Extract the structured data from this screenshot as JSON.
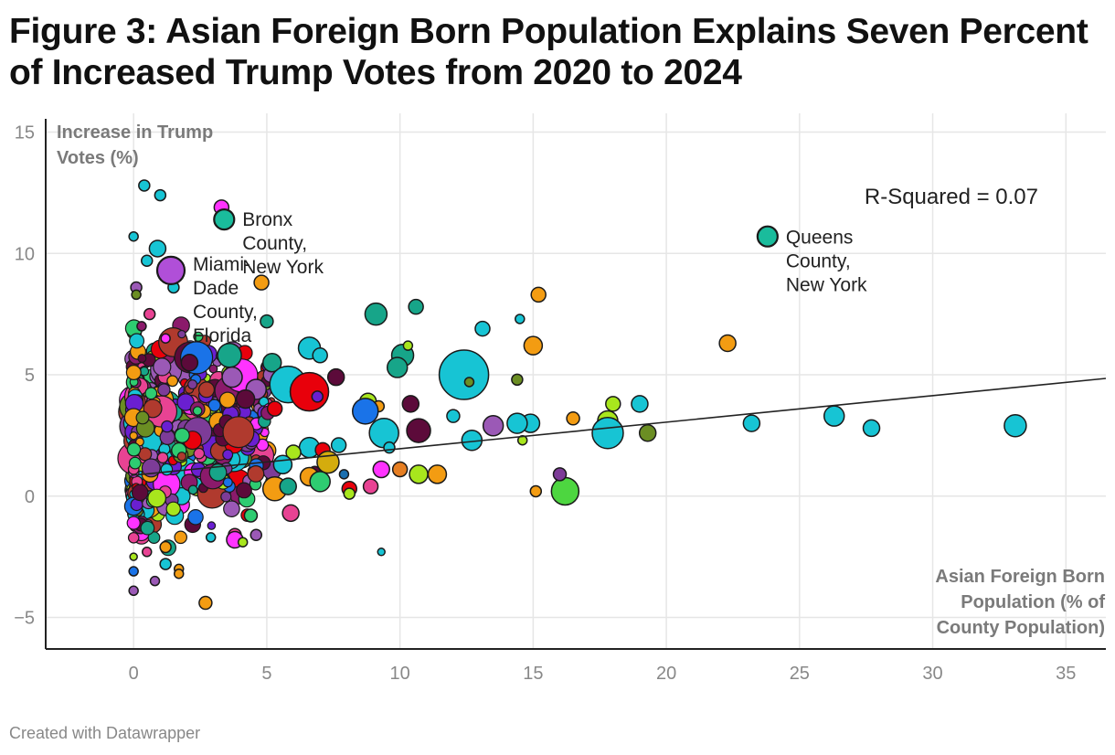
{
  "title": "Figure 3: Asian Foreign Born Population Explains Seven Percent of Increased Trump Votes from 2020 to 2024",
  "footer": "Created with Datawrapper",
  "chart_data": {
    "type": "scatter",
    "ylabel_lines": [
      "Increase in Trump",
      "Votes (%)"
    ],
    "xlabel_lines": [
      "Asian Foreign Born",
      "Population (% of",
      "County Population)"
    ],
    "xlim": [
      -3.3,
      36.5
    ],
    "ylim": [
      -6.3,
      16
    ],
    "x_ticks": [
      0,
      5,
      10,
      15,
      20,
      25,
      30,
      35
    ],
    "y_ticks": [
      15,
      10,
      5,
      0,
      -5
    ],
    "y_tick_labels": [
      "15",
      "10",
      "5",
      "0",
      "−5"
    ],
    "grid": true,
    "annotation_r_squared": "R-Squared = 0.07",
    "trend_line": {
      "x": [
        -0.1,
        36.5
      ],
      "y": [
        0.85,
        4.85
      ]
    },
    "highlighted_points": [
      {
        "x": 3.4,
        "y": 11.4,
        "label_lines": [
          "Bronx",
          "County,",
          "New York"
        ],
        "color": "#1abc9c"
      },
      {
        "x": 1.4,
        "y": 9.3,
        "label_lines": [
          "Miami-",
          "Dade",
          "County,",
          "Florida"
        ],
        "color": "#b04fd8"
      },
      {
        "x": 23.8,
        "y": 10.7,
        "label_lines": [
          "Queens",
          "County,",
          "New York"
        ],
        "color": "#1abc9c"
      }
    ],
    "series": [
      {
        "x": 0.4,
        "y": 12.8,
        "size": 6,
        "color": "#17c4d4"
      },
      {
        "x": 1.0,
        "y": 12.4,
        "size": 6,
        "color": "#17c4d4"
      },
      {
        "x": 3.3,
        "y": 11.9,
        "size": 8,
        "color": "#ff33ff"
      },
      {
        "x": 0.0,
        "y": 10.7,
        "size": 5,
        "color": "#17c4d4"
      },
      {
        "x": 0.9,
        "y": 10.2,
        "size": 9,
        "color": "#17c4d4"
      },
      {
        "x": 0.5,
        "y": 9.7,
        "size": 6,
        "color": "#17c4d4"
      },
      {
        "x": 1.5,
        "y": 8.6,
        "size": 6,
        "color": "#17c4d4"
      },
      {
        "x": 4.8,
        "y": 8.8,
        "size": 8,
        "color": "#f39c12"
      },
      {
        "x": 0.1,
        "y": 8.6,
        "size": 6,
        "color": "#9b59b6"
      },
      {
        "x": 0.1,
        "y": 8.3,
        "size": 5,
        "color": "#6b8e23"
      },
      {
        "x": 15.2,
        "y": 8.3,
        "size": 8,
        "color": "#f39c12"
      },
      {
        "x": 10.6,
        "y": 7.8,
        "size": 8,
        "color": "#17a589"
      },
      {
        "x": 9.1,
        "y": 7.5,
        "size": 12,
        "color": "#17a589"
      },
      {
        "x": 5.0,
        "y": 7.2,
        "size": 7,
        "color": "#17a589"
      },
      {
        "x": 14.5,
        "y": 7.3,
        "size": 5,
        "color": "#17c4d4"
      },
      {
        "x": 13.1,
        "y": 6.9,
        "size": 8,
        "color": "#17c4d4"
      },
      {
        "x": 0.6,
        "y": 7.5,
        "size": 6,
        "color": "#e84393"
      },
      {
        "x": 0.3,
        "y": 7.0,
        "size": 5,
        "color": "#8b1a6b"
      },
      {
        "x": 1.2,
        "y": 6.5,
        "size": 5,
        "color": "#ff33ff"
      },
      {
        "x": 22.3,
        "y": 6.3,
        "size": 9,
        "color": "#f39c12"
      },
      {
        "x": 15.0,
        "y": 6.2,
        "size": 10,
        "color": "#f39c12"
      },
      {
        "x": 6.6,
        "y": 6.1,
        "size": 12,
        "color": "#17c4d4"
      },
      {
        "x": 10.1,
        "y": 5.8,
        "size": 12,
        "color": "#17a589"
      },
      {
        "x": 10.3,
        "y": 6.2,
        "size": 5,
        "color": "#a8e61d"
      },
      {
        "x": 7.0,
        "y": 5.8,
        "size": 8,
        "color": "#17c4d4"
      },
      {
        "x": 5.2,
        "y": 5.5,
        "size": 10,
        "color": "#17a589"
      },
      {
        "x": 3.6,
        "y": 5.8,
        "size": 13,
        "color": "#17a589"
      },
      {
        "x": 2.1,
        "y": 5.5,
        "size": 9,
        "color": "#5c0a3a"
      },
      {
        "x": 9.9,
        "y": 5.3,
        "size": 11,
        "color": "#17a589"
      },
      {
        "x": 12.4,
        "y": 5.0,
        "size": 27,
        "color": "#17c4d4"
      },
      {
        "x": 14.4,
        "y": 4.8,
        "size": 6,
        "color": "#6b8e23"
      },
      {
        "x": 12.6,
        "y": 4.7,
        "size": 5,
        "color": "#6b8e23"
      },
      {
        "x": 7.6,
        "y": 4.9,
        "size": 9,
        "color": "#5c0a3a"
      },
      {
        "x": 5.8,
        "y": 4.6,
        "size": 20,
        "color": "#17c4d4"
      },
      {
        "x": 6.6,
        "y": 4.3,
        "size": 21,
        "color": "#e8000b"
      },
      {
        "x": 6.9,
        "y": 4.1,
        "size": 6,
        "color": "#6a1fd1"
      },
      {
        "x": 3.7,
        "y": 4.9,
        "size": 11,
        "color": "#9b59b6"
      },
      {
        "x": 4.6,
        "y": 4.4,
        "size": 11,
        "color": "#9b59b6"
      },
      {
        "x": 4.2,
        "y": 4.0,
        "size": 10,
        "color": "#5c0a3a"
      },
      {
        "x": 8.8,
        "y": 3.9,
        "size": 9,
        "color": "#a8e61d"
      },
      {
        "x": 10.4,
        "y": 3.8,
        "size": 9,
        "color": "#5c0a3a"
      },
      {
        "x": 9.2,
        "y": 3.7,
        "size": 6,
        "color": "#f39c12"
      },
      {
        "x": 8.7,
        "y": 3.5,
        "size": 14,
        "color": "#1a73e8"
      },
      {
        "x": 5.3,
        "y": 3.6,
        "size": 8,
        "color": "#e8000b"
      },
      {
        "x": 18.0,
        "y": 3.8,
        "size": 8,
        "color": "#a8e61d"
      },
      {
        "x": 19.0,
        "y": 3.8,
        "size": 9,
        "color": "#17c4d4"
      },
      {
        "x": 26.3,
        "y": 3.3,
        "size": 11,
        "color": "#17c4d4"
      },
      {
        "x": 33.1,
        "y": 2.9,
        "size": 12,
        "color": "#17c4d4"
      },
      {
        "x": 23.2,
        "y": 3.0,
        "size": 9,
        "color": "#17c4d4"
      },
      {
        "x": 27.7,
        "y": 2.8,
        "size": 9,
        "color": "#17c4d4"
      },
      {
        "x": 17.8,
        "y": 3.1,
        "size": 11,
        "color": "#a8e61d"
      },
      {
        "x": 17.8,
        "y": 2.6,
        "size": 17,
        "color": "#17c4d4"
      },
      {
        "x": 19.3,
        "y": 2.6,
        "size": 9,
        "color": "#6b8e23"
      },
      {
        "x": 16.5,
        "y": 3.2,
        "size": 7,
        "color": "#f39c12"
      },
      {
        "x": 14.9,
        "y": 3.0,
        "size": 10,
        "color": "#17c4d4"
      },
      {
        "x": 14.4,
        "y": 3.0,
        "size": 11,
        "color": "#17c4d4"
      },
      {
        "x": 13.5,
        "y": 2.9,
        "size": 11,
        "color": "#9b59b6"
      },
      {
        "x": 12.0,
        "y": 3.3,
        "size": 7,
        "color": "#17c4d4"
      },
      {
        "x": 10.7,
        "y": 2.7,
        "size": 13,
        "color": "#5c0a3a"
      },
      {
        "x": 9.4,
        "y": 2.6,
        "size": 16,
        "color": "#17c4d4"
      },
      {
        "x": 12.7,
        "y": 2.3,
        "size": 11,
        "color": "#17c4d4"
      },
      {
        "x": 14.6,
        "y": 2.3,
        "size": 5,
        "color": "#a8e61d"
      },
      {
        "x": 7.7,
        "y": 2.1,
        "size": 8,
        "color": "#17c4d4"
      },
      {
        "x": 9.6,
        "y": 2.0,
        "size": 6,
        "color": "#17c4d4"
      },
      {
        "x": 6.6,
        "y": 2.0,
        "size": 11,
        "color": "#17c4d4"
      },
      {
        "x": 7.1,
        "y": 1.9,
        "size": 8,
        "color": "#e8000b"
      },
      {
        "x": 6.0,
        "y": 1.8,
        "size": 8,
        "color": "#a8e61d"
      },
      {
        "x": 7.3,
        "y": 1.4,
        "size": 12,
        "color": "#d4ac0d"
      },
      {
        "x": 5.6,
        "y": 1.3,
        "size": 10,
        "color": "#17c4d4"
      },
      {
        "x": 6.8,
        "y": 1.0,
        "size": 6,
        "color": "#5c0a3a"
      },
      {
        "x": 7.9,
        "y": 0.9,
        "size": 5,
        "color": "#1a6fb0"
      },
      {
        "x": 9.3,
        "y": 1.1,
        "size": 9,
        "color": "#ff33ff"
      },
      {
        "x": 10.0,
        "y": 1.1,
        "size": 8,
        "color": "#e67e22"
      },
      {
        "x": 10.7,
        "y": 0.9,
        "size": 10,
        "color": "#a8e61d"
      },
      {
        "x": 11.4,
        "y": 0.9,
        "size": 10,
        "color": "#f39c12"
      },
      {
        "x": 6.6,
        "y": 0.8,
        "size": 10,
        "color": "#f39c12"
      },
      {
        "x": 7.0,
        "y": 0.6,
        "size": 11,
        "color": "#2ecc71"
      },
      {
        "x": 8.1,
        "y": 0.3,
        "size": 8,
        "color": "#e8000b"
      },
      {
        "x": 8.1,
        "y": 0.1,
        "size": 6,
        "color": "#a8e61d"
      },
      {
        "x": 8.9,
        "y": 0.4,
        "size": 8,
        "color": "#e84393"
      },
      {
        "x": 5.3,
        "y": 0.3,
        "size": 13,
        "color": "#f39c12"
      },
      {
        "x": 5.8,
        "y": 0.4,
        "size": 9,
        "color": "#17a589"
      },
      {
        "x": 16.2,
        "y": 0.2,
        "size": 15,
        "color": "#4dd640"
      },
      {
        "x": 16.0,
        "y": 0.9,
        "size": 7,
        "color": "#7d3c98"
      },
      {
        "x": 15.1,
        "y": 0.2,
        "size": 6,
        "color": "#f39c12"
      },
      {
        "x": 5.9,
        "y": -0.7,
        "size": 9,
        "color": "#e84393"
      },
      {
        "x": 4.4,
        "y": -0.8,
        "size": 7,
        "color": "#2ecc71"
      },
      {
        "x": 3.8,
        "y": -1.6,
        "size": 7,
        "color": "#e84393"
      },
      {
        "x": 3.8,
        "y": -1.8,
        "size": 9,
        "color": "#ff33ff"
      },
      {
        "x": 2.9,
        "y": -1.7,
        "size": 5,
        "color": "#17c4d4"
      },
      {
        "x": 4.6,
        "y": -1.6,
        "size": 6,
        "color": "#9b59b6"
      },
      {
        "x": 4.1,
        "y": -1.9,
        "size": 5,
        "color": "#a8e61d"
      },
      {
        "x": 9.3,
        "y": -2.3,
        "size": 4,
        "color": "#17c4d4"
      },
      {
        "x": 2.7,
        "y": -4.4,
        "size": 7,
        "color": "#f39c12"
      },
      {
        "x": 0.0,
        "y": -3.9,
        "size": 5,
        "color": "#9b59b6"
      },
      {
        "x": 0.8,
        "y": -3.5,
        "size": 5,
        "color": "#9b59b6"
      },
      {
        "x": 1.7,
        "y": -3.0,
        "size": 5,
        "color": "#f39c12"
      },
      {
        "x": 1.7,
        "y": -3.2,
        "size": 5,
        "color": "#f39c12"
      },
      {
        "x": 1.2,
        "y": -2.8,
        "size": 6,
        "color": "#17c4d4"
      },
      {
        "x": 0.0,
        "y": -3.1,
        "size": 5,
        "color": "#1a73e8"
      },
      {
        "x": 0.5,
        "y": -2.3,
        "size": 5,
        "color": "#e84393"
      },
      {
        "x": 1.2,
        "y": -2.1,
        "size": 6,
        "color": "#f39c12"
      },
      {
        "x": 0.0,
        "y": -2.5,
        "size": 4,
        "color": "#a8e61d"
      }
    ]
  }
}
